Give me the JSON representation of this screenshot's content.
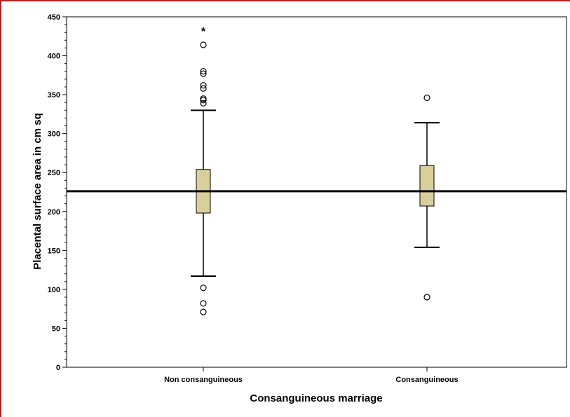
{
  "chart_data": {
    "type": "box",
    "title": "",
    "xlabel": "Consanguineous marriage",
    "ylabel": "Placental surface area in cm sq",
    "ylim": [
      0,
      450
    ],
    "yticks": [
      0,
      50,
      100,
      150,
      200,
      250,
      300,
      350,
      400,
      450
    ],
    "grid": false,
    "reference_line": 226,
    "box_color": "#d8cf9b",
    "categories": [
      "Non consanguineous",
      "Consanguineous"
    ],
    "boxes": [
      {
        "category": "Non consanguineous",
        "whisker_low": 117,
        "q1": 198,
        "median": 226,
        "q3": 254,
        "whisker_high": 330,
        "outliers": [
          414,
          380,
          377,
          362,
          358,
          345,
          343,
          339,
          102,
          82,
          71
        ],
        "extremes": [
          433
        ]
      },
      {
        "category": "Consanguineous",
        "whisker_low": 154,
        "q1": 207,
        "median": 226,
        "q3": 259,
        "whisker_high": 314,
        "outliers": [
          346,
          90
        ],
        "extremes": []
      }
    ]
  }
}
